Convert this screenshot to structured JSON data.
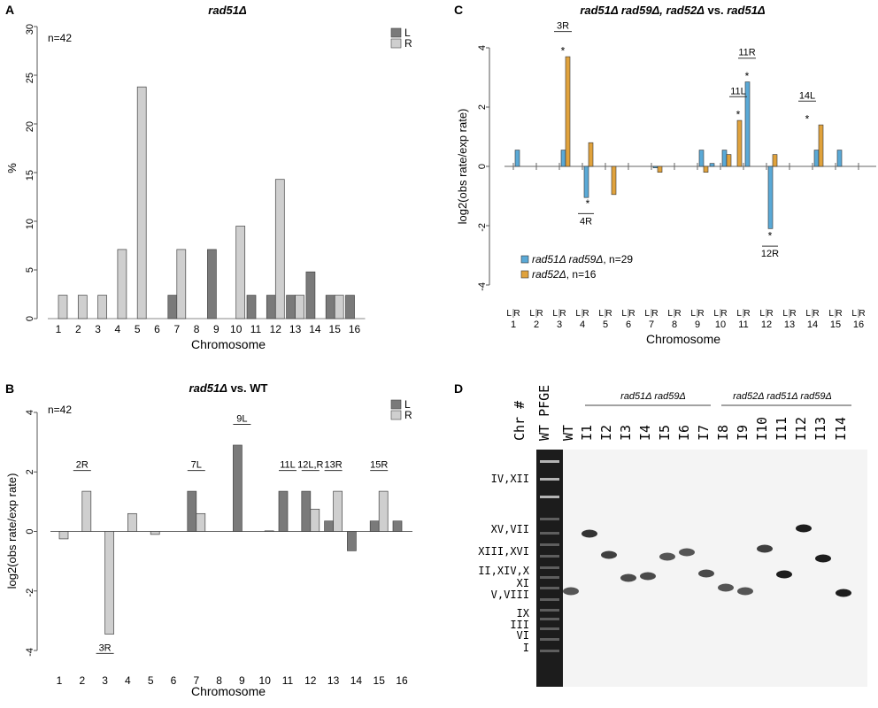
{
  "panels": {
    "A": {
      "letter": "A",
      "title": "rad51Δ",
      "n_label": "n=42",
      "xlabel": "Chromosome",
      "ylabel": "%",
      "yticks": [
        "0",
        "5",
        "10",
        "15",
        "20",
        "25",
        "30"
      ],
      "legend": [
        "L",
        "R"
      ]
    },
    "B": {
      "letter": "B",
      "title": "rad51Δ vs. WT",
      "n_label": "n=42",
      "xlabel": "Chromosome",
      "ylabel": "log2(obs rate/exp rate)",
      "yticks": [
        "-4",
        "-2",
        "0",
        "2",
        "4"
      ],
      "legend": [
        "L",
        "R"
      ]
    },
    "C": {
      "letter": "C",
      "title": "rad51Δ rad59Δ, rad52Δ vs. rad51Δ",
      "xlabel": "Chromosome",
      "ylabel": "log2(obs rate/exp rate)",
      "yticks": [
        "-4",
        "-2",
        "0",
        "2",
        "4"
      ],
      "arm_label": "L R",
      "legend": [
        {
          "name": "rad51Δ rad59Δ",
          "suffix": ", n=29"
        },
        {
          "name": "rad52Δ",
          "suffix": ", n=16"
        }
      ]
    },
    "D": {
      "letter": "D",
      "chr_header": "Chr #",
      "group1": "rad51Δ rad59Δ",
      "group2": "rad52Δ rad51Δ rad59Δ",
      "lanes": [
        "WT PFGE",
        "WT",
        "I1",
        "I2",
        "I3",
        "I4",
        "I5",
        "I6",
        "I7",
        "I8",
        "I9",
        "I10",
        "I11",
        "I12",
        "I13",
        "I14"
      ],
      "chr_labels": [
        "IV,XII",
        "XV,VII",
        "XIII,XVI",
        "II,XIV,X",
        "XI",
        "V,VIII",
        "IX",
        "III",
        "VI",
        "I"
      ]
    }
  },
  "chart_data": [
    {
      "panel": "A",
      "type": "bar",
      "title": "rad51Δ",
      "xlabel": "Chromosome",
      "ylabel": "%",
      "ylim": [
        0,
        30
      ],
      "categories": [
        "1",
        "2",
        "3",
        "4",
        "5",
        "6",
        "7",
        "8",
        "9",
        "10",
        "11",
        "12",
        "13",
        "14",
        "15",
        "16"
      ],
      "series": [
        {
          "name": "L",
          "color": "#7a7a7a",
          "values": [
            0,
            0,
            0,
            0,
            0,
            0,
            2.4,
            0,
            7.1,
            0,
            2.4,
            2.4,
            2.4,
            4.8,
            2.4,
            2.4
          ]
        },
        {
          "name": "R",
          "color": "#cfcfcf",
          "values": [
            2.4,
            2.4,
            2.4,
            7.1,
            23.8,
            0,
            7.1,
            0,
            0,
            9.5,
            0,
            14.3,
            2.4,
            0,
            2.4,
            0
          ]
        }
      ]
    },
    {
      "panel": "B",
      "type": "bar",
      "title": "rad51Δ vs. WT",
      "xlabel": "Chromosome",
      "ylabel": "log2(obs rate/exp rate)",
      "ylim": [
        -4,
        4
      ],
      "categories": [
        "1",
        "2",
        "3",
        "4",
        "5",
        "6",
        "7",
        "8",
        "9",
        "10",
        "11",
        "12",
        "13",
        "14",
        "15",
        "16"
      ],
      "series": [
        {
          "name": "L",
          "color": "#7a7a7a",
          "values": [
            0,
            0,
            0,
            0,
            0,
            0,
            1.35,
            0,
            2.9,
            0,
            1.35,
            1.35,
            0.35,
            -0.65,
            0.35,
            0.35
          ]
        },
        {
          "name": "R",
          "color": "#cfcfcf",
          "values": [
            -0.25,
            1.35,
            -3.45,
            0.6,
            -0.1,
            0,
            0.6,
            0,
            0,
            0.02,
            0,
            0.75,
            1.35,
            0,
            1.35,
            0
          ]
        }
      ],
      "annotations": [
        {
          "text": "2R",
          "cat": "2",
          "y": 2.05
        },
        {
          "text": "3R",
          "cat": "3",
          "y": -4.1
        },
        {
          "text": "7L",
          "cat": "7",
          "y": 2.05
        },
        {
          "text": "9L",
          "cat": "9",
          "y": 3.6
        },
        {
          "text": "11L",
          "cat": "11",
          "y": 2.05
        },
        {
          "text": "12L,R",
          "cat": "12",
          "y": 2.05
        },
        {
          "text": "13R",
          "cat": "13",
          "y": 2.05
        },
        {
          "text": "15R",
          "cat": "15",
          "y": 2.05
        }
      ]
    },
    {
      "panel": "C",
      "type": "bar",
      "title": "rad51Δ rad59Δ, rad52Δ vs. rad51Δ",
      "xlabel": "Chromosome",
      "ylabel": "log2(obs rate/exp rate)",
      "ylim": [
        -4,
        4
      ],
      "categories": [
        "1",
        "2",
        "3",
        "4",
        "5",
        "6",
        "7",
        "8",
        "9",
        "10",
        "11",
        "12",
        "13",
        "14",
        "15",
        "16"
      ],
      "series": [
        {
          "name": "rad51Δ rad59Δ",
          "color": "#5aa9d6",
          "L": [
            0,
            0,
            0,
            0,
            0,
            0,
            0,
            0,
            0,
            0.1,
            0,
            0,
            0,
            0,
            0,
            0
          ],
          "R": [
            0.55,
            0,
            0.55,
            -1.05,
            0,
            0,
            -0.05,
            0,
            0.55,
            0.55,
            2.85,
            -2.1,
            0,
            0.55,
            0.55,
            0
          ]
        },
        {
          "name": "rad52Δ",
          "color": "#e0a23c",
          "L": [
            0,
            0,
            0,
            0,
            0,
            0,
            0,
            0,
            0,
            0,
            1.55,
            0,
            0,
            0,
            0,
            0
          ],
          "R": [
            0,
            0,
            3.7,
            0.8,
            -0.95,
            0,
            -0.2,
            0,
            -0.2,
            0.4,
            0,
            0.4,
            0,
            1.4,
            0,
            0
          ]
        }
      ],
      "annotations": [
        {
          "text": "3R",
          "cat": "3",
          "y": 4.55
        },
        {
          "text": "4R",
          "cat": "4",
          "y": -1.95
        },
        {
          "text": "11L",
          "cat": "11",
          "y": 2.35
        },
        {
          "text": "11R",
          "cat": "11",
          "y": 3.65
        },
        {
          "text": "12R",
          "cat": "12",
          "y": -3.05
        },
        {
          "text": "14L",
          "cat": "14",
          "y": 2.2
        }
      ],
      "stars": [
        {
          "cat": "3",
          "y": 3.9
        },
        {
          "cat": "4",
          "y": -1.25
        },
        {
          "cat": "11",
          "y": 1.75
        },
        {
          "cat": "11",
          "y": 3.05
        },
        {
          "cat": "12",
          "y": -2.35
        },
        {
          "cat": "14",
          "y": 1.6
        }
      ]
    }
  ]
}
